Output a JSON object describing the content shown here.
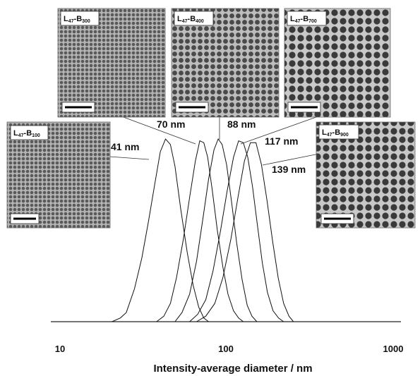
{
  "chart_data": {
    "type": "line",
    "title": "",
    "xlabel": "Intensity-average diameter / nm",
    "ylabel": "",
    "xscale": "log",
    "xlim": [
      10,
      1000
    ],
    "ylim": [
      0,
      1
    ],
    "x_ticks": [
      "10",
      "100",
      "1000"
    ],
    "grid": false,
    "legend": "none",
    "peak_labels": [
      "41 nm",
      "70 nm",
      "88 nm",
      "117 nm",
      "139 nm"
    ],
    "series": [
      {
        "name": "L47-B100",
        "label": "41 nm",
        "x": [
          20.5,
          23,
          25,
          28,
          31,
          34,
          37,
          40,
          43,
          46,
          49,
          53,
          58,
          63,
          68,
          73,
          78
        ],
        "y": [
          0,
          0.02,
          0.05,
          0.18,
          0.35,
          0.55,
          0.75,
          0.93,
          1.0,
          0.97,
          0.85,
          0.62,
          0.38,
          0.2,
          0.08,
          0.02,
          0
        ]
      },
      {
        "name": "L47-B300",
        "label": "70 nm",
        "x": [
          38,
          42,
          46,
          50,
          55,
          60,
          65,
          69,
          73,
          77,
          82,
          88,
          95,
          102,
          110,
          118,
          126
        ],
        "y": [
          0,
          0.03,
          0.1,
          0.24,
          0.45,
          0.68,
          0.88,
          0.99,
          0.98,
          0.9,
          0.72,
          0.5,
          0.3,
          0.15,
          0.06,
          0.02,
          0
        ]
      },
      {
        "name": "L47-B400",
        "label": "88 nm",
        "x": [
          49,
          54,
          60,
          66,
          72,
          78,
          84,
          89,
          94,
          100,
          107,
          115,
          124,
          133,
          142,
          152
        ],
        "y": [
          0,
          0.05,
          0.15,
          0.33,
          0.56,
          0.78,
          0.94,
          1.0,
          0.97,
          0.86,
          0.66,
          0.43,
          0.23,
          0.09,
          0.03,
          0
        ]
      },
      {
        "name": "L47-B700",
        "label": "117 nm",
        "x": [
          60,
          67,
          75,
          83,
          92,
          101,
          110,
          118,
          126,
          134,
          143,
          153,
          164,
          176,
          190,
          205,
          220
        ],
        "y": [
          0,
          0.04,
          0.12,
          0.28,
          0.5,
          0.72,
          0.9,
          0.99,
          0.98,
          0.9,
          0.74,
          0.53,
          0.32,
          0.16,
          0.06,
          0.02,
          0
        ]
      },
      {
        "name": "L47-B900",
        "label": "139 nm",
        "x": [
          66,
          75,
          85,
          95,
          106,
          117,
          128,
          139,
          150,
          162,
          175,
          189,
          204,
          220,
          237,
          252
        ],
        "y": [
          0,
          0.03,
          0.1,
          0.24,
          0.45,
          0.68,
          0.88,
          0.98,
          0.98,
          0.86,
          0.66,
          0.44,
          0.24,
          0.1,
          0.03,
          0
        ]
      }
    ]
  },
  "insets": [
    {
      "L": "L",
      "Lsub": "47",
      "B": "-B",
      "Bsub": "100"
    },
    {
      "L": "L",
      "Lsub": "47",
      "B": "-B",
      "Bsub": "300"
    },
    {
      "L": "L",
      "Lsub": "47",
      "B": "-B",
      "Bsub": "400"
    },
    {
      "L": "L",
      "Lsub": "47",
      "B": "-B",
      "Bsub": "700"
    },
    {
      "L": "L",
      "Lsub": "47",
      "B": "-B",
      "Bsub": "900"
    }
  ]
}
